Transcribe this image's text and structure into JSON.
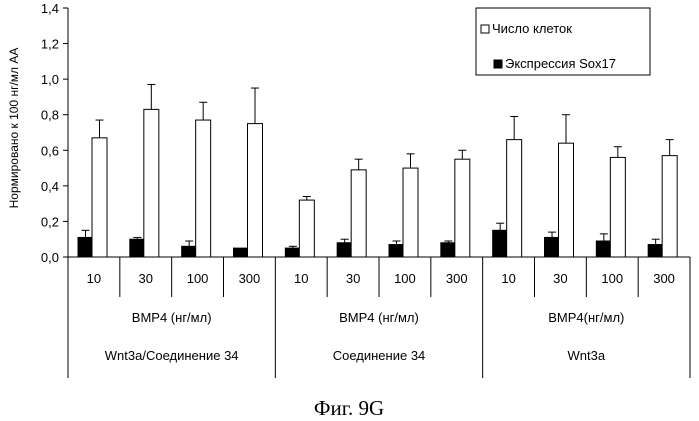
{
  "caption": "Фиг. 9G",
  "chart_data": {
    "type": "bar",
    "ylabel": "Нормировано к 100 нг/мл АА",
    "ylim": [
      0,
      1.4
    ],
    "yticks": [
      "0,0",
      "0,2",
      "0,4",
      "0,6",
      "0,8",
      "1,0",
      "1,2",
      "1,4"
    ],
    "ytick_values": [
      0,
      0.2,
      0.4,
      0.6,
      0.8,
      1.0,
      1.2,
      1.4
    ],
    "categories": [
      "10",
      "30",
      "100",
      "300",
      "10",
      "30",
      "100",
      "300",
      "10",
      "30",
      "100",
      "300"
    ],
    "groups": [
      {
        "sublabel": "BMP4 (нг/мл)",
        "label": "Wnt3a/Соединение 34"
      },
      {
        "sublabel": "BMP4 (нг/мл)",
        "label": "Соединение 34"
      },
      {
        "sublabel": "BMP4(нг/мл)",
        "label": "Wnt3a"
      }
    ],
    "series": [
      {
        "name": "Экспрессия Sox17",
        "color": "#000000",
        "values": [
          0.11,
          0.1,
          0.06,
          0.05,
          0.05,
          0.08,
          0.07,
          0.08,
          0.15,
          0.11,
          0.09,
          0.07
        ],
        "errors": [
          0.04,
          0.01,
          0.03,
          0.0,
          0.01,
          0.02,
          0.02,
          0.01,
          0.04,
          0.03,
          0.04,
          0.03
        ]
      },
      {
        "name": "Число клеток",
        "color": "#ffffff",
        "values": [
          0.67,
          0.83,
          0.77,
          0.75,
          0.32,
          0.49,
          0.5,
          0.55,
          0.66,
          0.64,
          0.56,
          0.57
        ],
        "errors": [
          0.1,
          0.14,
          0.1,
          0.2,
          0.02,
          0.06,
          0.08,
          0.05,
          0.13,
          0.16,
          0.06,
          0.09
        ]
      }
    ],
    "legend_position": "top-right",
    "grid": false
  }
}
